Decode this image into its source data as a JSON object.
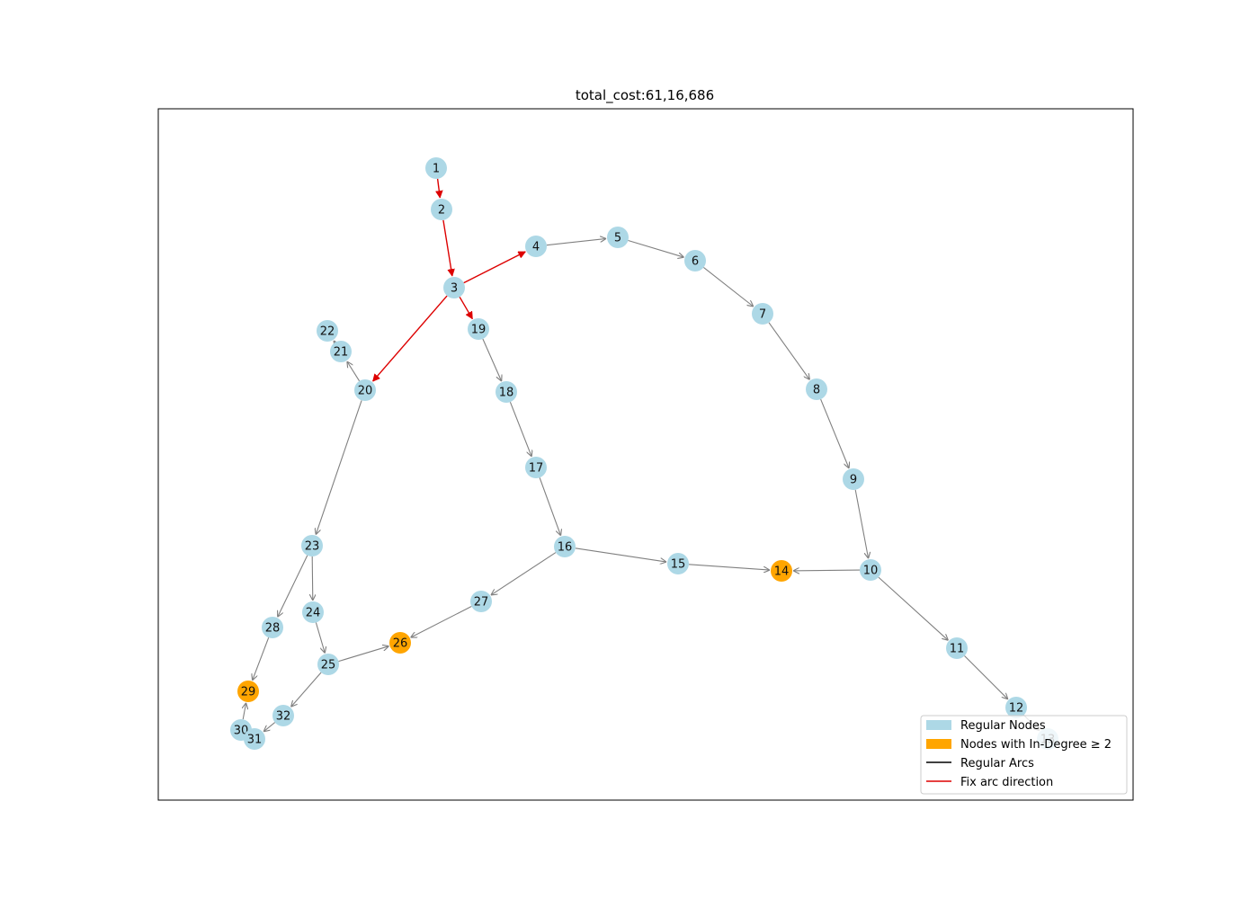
{
  "title": "total_cost:61,16,686",
  "colors": {
    "regular_node": "#add8e6",
    "indegree_node": "#ffa500",
    "regular_arc": "#808080",
    "fix_arc": "#dd0000",
    "legend_regular_arc": "#000000"
  },
  "legend": {
    "regular_nodes": "Regular Nodes",
    "indegree_nodes": "Nodes with In-Degree ≥ 2",
    "regular_arcs": "Regular Arcs",
    "fix_arcs": "Fix arc direction"
  },
  "nodes": [
    {
      "id": "1",
      "type": "regular"
    },
    {
      "id": "2",
      "type": "regular"
    },
    {
      "id": "3",
      "type": "regular"
    },
    {
      "id": "4",
      "type": "regular"
    },
    {
      "id": "5",
      "type": "regular"
    },
    {
      "id": "6",
      "type": "regular"
    },
    {
      "id": "7",
      "type": "regular"
    },
    {
      "id": "8",
      "type": "regular"
    },
    {
      "id": "9",
      "type": "regular"
    },
    {
      "id": "10",
      "type": "regular"
    },
    {
      "id": "11",
      "type": "regular"
    },
    {
      "id": "12",
      "type": "regular"
    },
    {
      "id": "13",
      "type": "regular"
    },
    {
      "id": "14",
      "type": "indegree"
    },
    {
      "id": "15",
      "type": "regular"
    },
    {
      "id": "16",
      "type": "regular"
    },
    {
      "id": "17",
      "type": "regular"
    },
    {
      "id": "18",
      "type": "regular"
    },
    {
      "id": "19",
      "type": "regular"
    },
    {
      "id": "20",
      "type": "regular"
    },
    {
      "id": "21",
      "type": "regular"
    },
    {
      "id": "22",
      "type": "regular"
    },
    {
      "id": "23",
      "type": "regular"
    },
    {
      "id": "24",
      "type": "regular"
    },
    {
      "id": "25",
      "type": "regular"
    },
    {
      "id": "26",
      "type": "indegree"
    },
    {
      "id": "27",
      "type": "regular"
    },
    {
      "id": "28",
      "type": "regular"
    },
    {
      "id": "29",
      "type": "indegree"
    },
    {
      "id": "30",
      "type": "regular"
    },
    {
      "id": "31",
      "type": "regular"
    },
    {
      "id": "32",
      "type": "regular"
    }
  ],
  "arcs": [
    {
      "from": "1",
      "to": "2",
      "fix": true
    },
    {
      "from": "2",
      "to": "3",
      "fix": true
    },
    {
      "from": "3",
      "to": "4",
      "fix": true
    },
    {
      "from": "3",
      "to": "19",
      "fix": true
    },
    {
      "from": "3",
      "to": "20",
      "fix": true
    },
    {
      "from": "4",
      "to": "5",
      "fix": false
    },
    {
      "from": "5",
      "to": "6",
      "fix": false
    },
    {
      "from": "6",
      "to": "7",
      "fix": false
    },
    {
      "from": "7",
      "to": "8",
      "fix": false
    },
    {
      "from": "8",
      "to": "9",
      "fix": false
    },
    {
      "from": "9",
      "to": "10",
      "fix": false
    },
    {
      "from": "10",
      "to": "14",
      "fix": false
    },
    {
      "from": "10",
      "to": "11",
      "fix": false
    },
    {
      "from": "11",
      "to": "12",
      "fix": false
    },
    {
      "from": "12",
      "to": "13",
      "fix": false
    },
    {
      "from": "19",
      "to": "18",
      "fix": false
    },
    {
      "from": "18",
      "to": "17",
      "fix": false
    },
    {
      "from": "17",
      "to": "16",
      "fix": false
    },
    {
      "from": "16",
      "to": "15",
      "fix": false
    },
    {
      "from": "15",
      "to": "14",
      "fix": false
    },
    {
      "from": "16",
      "to": "27",
      "fix": false
    },
    {
      "from": "27",
      "to": "26",
      "fix": false
    },
    {
      "from": "20",
      "to": "21",
      "fix": false
    },
    {
      "from": "21",
      "to": "22",
      "fix": false
    },
    {
      "from": "20",
      "to": "23",
      "fix": false
    },
    {
      "from": "23",
      "to": "24",
      "fix": false
    },
    {
      "from": "23",
      "to": "28",
      "fix": false
    },
    {
      "from": "24",
      "to": "25",
      "fix": false
    },
    {
      "from": "25",
      "to": "26",
      "fix": false
    },
    {
      "from": "25",
      "to": "32",
      "fix": false
    },
    {
      "from": "28",
      "to": "29",
      "fix": false
    },
    {
      "from": "32",
      "to": "31",
      "fix": false
    },
    {
      "from": "31",
      "to": "30",
      "fix": false
    },
    {
      "from": "30",
      "to": "29",
      "fix": false
    }
  ]
}
